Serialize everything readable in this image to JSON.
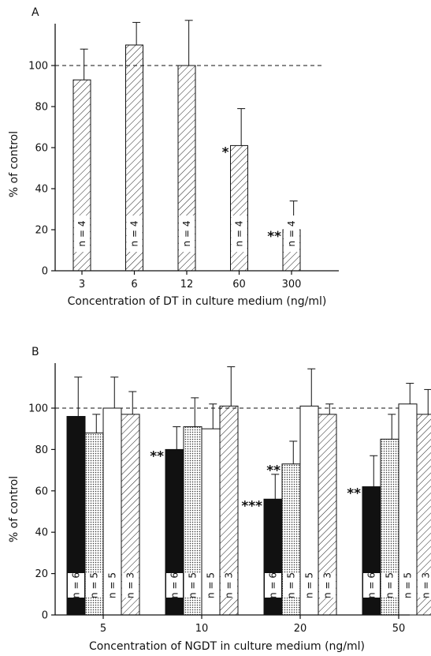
{
  "chart_data": [
    {
      "type": "bar",
      "panel_label": "A",
      "xlabel": "Concentration of DT in culture medium (ng/ml)",
      "ylabel": "% of control",
      "ylim": [
        0,
        120
      ],
      "yticks": [
        "0",
        "20",
        "40",
        "60",
        "80",
        "100"
      ],
      "reference_line": 100,
      "categories": [
        "3",
        "6",
        "12",
        "60",
        "300"
      ],
      "series": [
        {
          "values": [
            93,
            110,
            100,
            61,
            20
          ],
          "errors": [
            15,
            11,
            22,
            18,
            14
          ],
          "n_labels": [
            "n = 4",
            "n = 4",
            "n = 4",
            "n = 4",
            "n = 4"
          ],
          "significance": [
            "",
            "",
            "",
            "*",
            "**"
          ],
          "pattern": "hatched"
        }
      ]
    },
    {
      "type": "bar",
      "panel_label": "B",
      "xlabel": "Concentration of NGDT in culture medium (ng/ml)",
      "ylabel": "% of control",
      "ylim": [
        0,
        120
      ],
      "yticks": [
        "0",
        "20",
        "40",
        "60",
        "80",
        "100"
      ],
      "reference_line": 100,
      "categories": [
        "5",
        "10",
        "20",
        "50"
      ],
      "series": [
        {
          "values": [
            96,
            80,
            56,
            62
          ],
          "errors": [
            19,
            11,
            12,
            15
          ],
          "n_label": "n = 6",
          "significance": [
            "",
            "**",
            "***",
            "**"
          ],
          "pattern": "black"
        },
        {
          "values": [
            88,
            91,
            73,
            85
          ],
          "errors": [
            9,
            14,
            11,
            12
          ],
          "n_label": "n = 5",
          "significance": [
            "",
            "",
            "**",
            ""
          ],
          "pattern": "dotted"
        },
        {
          "values": [
            100,
            90,
            101,
            102
          ],
          "errors": [
            15,
            12,
            18,
            10
          ],
          "n_label": "n = 5",
          "significance": [
            "",
            "",
            "",
            ""
          ],
          "pattern": "white"
        },
        {
          "values": [
            97,
            101,
            97,
            97
          ],
          "errors": [
            11,
            19,
            5,
            12
          ],
          "n_label": "n = 3",
          "significance": [
            "",
            "",
            "",
            ""
          ],
          "pattern": "hatched"
        }
      ]
    }
  ]
}
